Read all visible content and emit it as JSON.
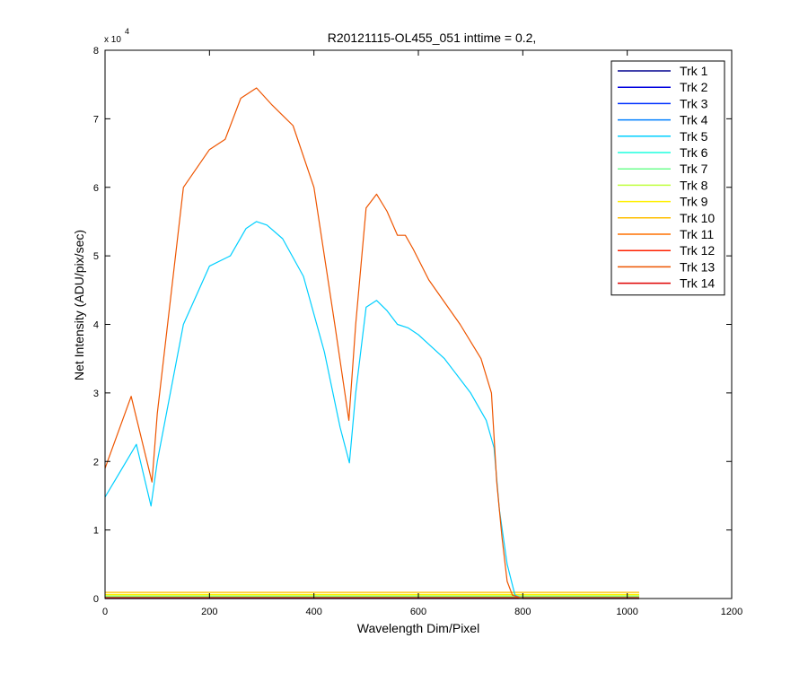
{
  "chart_data": {
    "type": "line",
    "title": "R20121115-OL455_051 inttime = 0.2,",
    "xlabel": "Wavelength Dim/Pixel",
    "ylabel": "Net Intensity (ADU/pix/sec)",
    "xlim": [
      0,
      1200
    ],
    "ylim": [
      0,
      80000
    ],
    "xticks": [
      0,
      200,
      400,
      600,
      800,
      1000,
      1200
    ],
    "xtick_labels": [
      "0",
      "200",
      "400",
      "600",
      "800",
      "1000",
      "1200"
    ],
    "yticks": [
      0,
      10000,
      20000,
      30000,
      40000,
      50000,
      60000,
      70000,
      80000
    ],
    "ytick_labels": [
      "0",
      "1",
      "2",
      "3",
      "4",
      "5",
      "6",
      "7",
      "8"
    ],
    "y_multiplier": {
      "base": "x 10",
      "exponent": "4"
    },
    "grid": false,
    "legend_position": "top-right",
    "series": [
      {
        "name": "Trk 1",
        "color": "#00008f",
        "x": [
          0,
          1023
        ],
        "y": [
          0,
          0
        ]
      },
      {
        "name": "Trk 2",
        "color": "#0000df",
        "x": [
          0,
          1023
        ],
        "y": [
          100,
          100
        ]
      },
      {
        "name": "Trk 3",
        "color": "#0030ff",
        "x": [
          0,
          1023
        ],
        "y": [
          200,
          200
        ]
      },
      {
        "name": "Trk 4",
        "color": "#0080ff",
        "x": [
          0,
          1023
        ],
        "y": [
          250,
          250
        ]
      },
      {
        "name": "Trk 5",
        "color": "#00cfff",
        "x": [
          0,
          60,
          88,
          100,
          150,
          200,
          240,
          270,
          290,
          310,
          340,
          380,
          420,
          450,
          468,
          480,
          500,
          520,
          540,
          560,
          580,
          600,
          650,
          700,
          730,
          745,
          755,
          770,
          785,
          800,
          850,
          1023
        ],
        "y": [
          14800,
          22500,
          13500,
          20000,
          40000,
          48500,
          50000,
          54000,
          55000,
          54500,
          52500,
          47000,
          36000,
          25000,
          19800,
          30000,
          42500,
          43500,
          42000,
          40000,
          39500,
          38500,
          35000,
          30000,
          26000,
          22000,
          13000,
          5000,
          500,
          0,
          0,
          0
        ]
      },
      {
        "name": "Trk 6",
        "color": "#1fffdf",
        "x": [
          0,
          1023
        ],
        "y": [
          300,
          300
        ]
      },
      {
        "name": "Trk 7",
        "color": "#6fff8f",
        "x": [
          0,
          1023
        ],
        "y": [
          350,
          350
        ]
      },
      {
        "name": "Trk 8",
        "color": "#bfff3f",
        "x": [
          0,
          1023
        ],
        "y": [
          400,
          400
        ]
      },
      {
        "name": "Trk 9",
        "color": "#ffef00",
        "x": [
          0,
          1023
        ],
        "y": [
          600,
          600
        ]
      },
      {
        "name": "Trk 10",
        "color": "#ffbf00",
        "x": [
          0,
          1023
        ],
        "y": [
          900,
          900
        ]
      },
      {
        "name": "Trk 11",
        "color": "#ff7000",
        "x": [
          0,
          1023
        ],
        "y": [
          150,
          150
        ]
      },
      {
        "name": "Trk 12",
        "color": "#ff2000",
        "x": [
          0,
          1023
        ],
        "y": [
          50,
          50
        ]
      },
      {
        "name": "Trk 13",
        "color": "#ee5500",
        "x": [
          0,
          50,
          90,
          100,
          150,
          200,
          230,
          260,
          290,
          320,
          360,
          400,
          440,
          467,
          480,
          500,
          520,
          540,
          560,
          575,
          590,
          620,
          680,
          720,
          740,
          750,
          760,
          770,
          780,
          800,
          850,
          1023
        ],
        "y": [
          19000,
          29500,
          17000,
          27000,
          60000,
          65500,
          67000,
          73000,
          74500,
          72000,
          69000,
          60000,
          40000,
          26000,
          40000,
          57000,
          59000,
          56500,
          53000,
          53000,
          51000,
          46500,
          40000,
          35000,
          30000,
          17000,
          9000,
          2500,
          500,
          0,
          0,
          0
        ]
      },
      {
        "name": "Trk 14",
        "color": "#df0000",
        "x": [
          0,
          1023
        ],
        "y": [
          80,
          80
        ]
      }
    ]
  }
}
